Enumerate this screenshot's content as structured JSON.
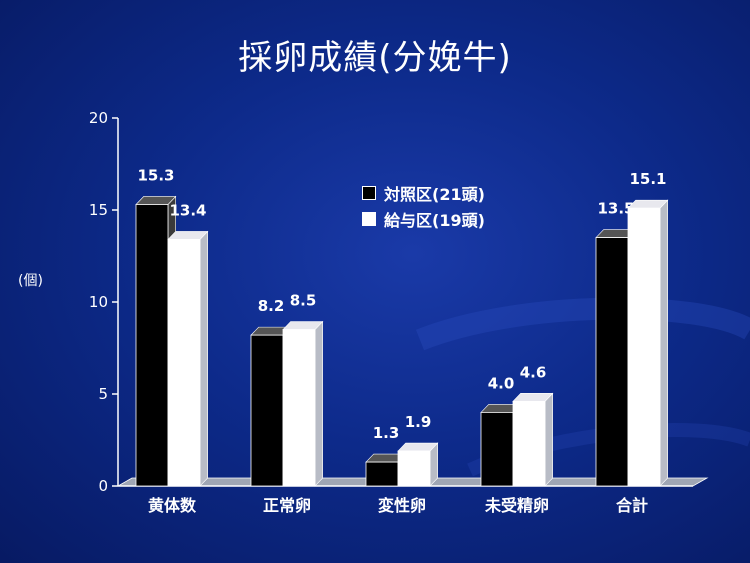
{
  "title": "採卵成績(分娩牛)",
  "chart_data": {
    "type": "bar",
    "ylabel": "(個)",
    "categories": [
      "黄体数",
      "正常卵",
      "変性卵",
      "未受精卵",
      "合計"
    ],
    "ylim": [
      0,
      20
    ],
    "yticks": [
      0,
      5,
      10,
      15,
      20
    ],
    "series": [
      {
        "name": "対照区(21頭)",
        "values": [
          15.3,
          8.2,
          1.3,
          4.0,
          13.5
        ],
        "labels": [
          "15.3",
          "8.2",
          "1.3",
          "4.0",
          "13.5"
        ],
        "color": "#000000"
      },
      {
        "name": "給与区(19頭)",
        "values": [
          13.4,
          8.5,
          1.9,
          4.6,
          15.1
        ],
        "labels": [
          "13.4",
          "8.5",
          "1.9",
          "4.6",
          "15.1"
        ],
        "color": "#ffffff"
      }
    ],
    "legend_position": "top-right",
    "grid": false
  }
}
